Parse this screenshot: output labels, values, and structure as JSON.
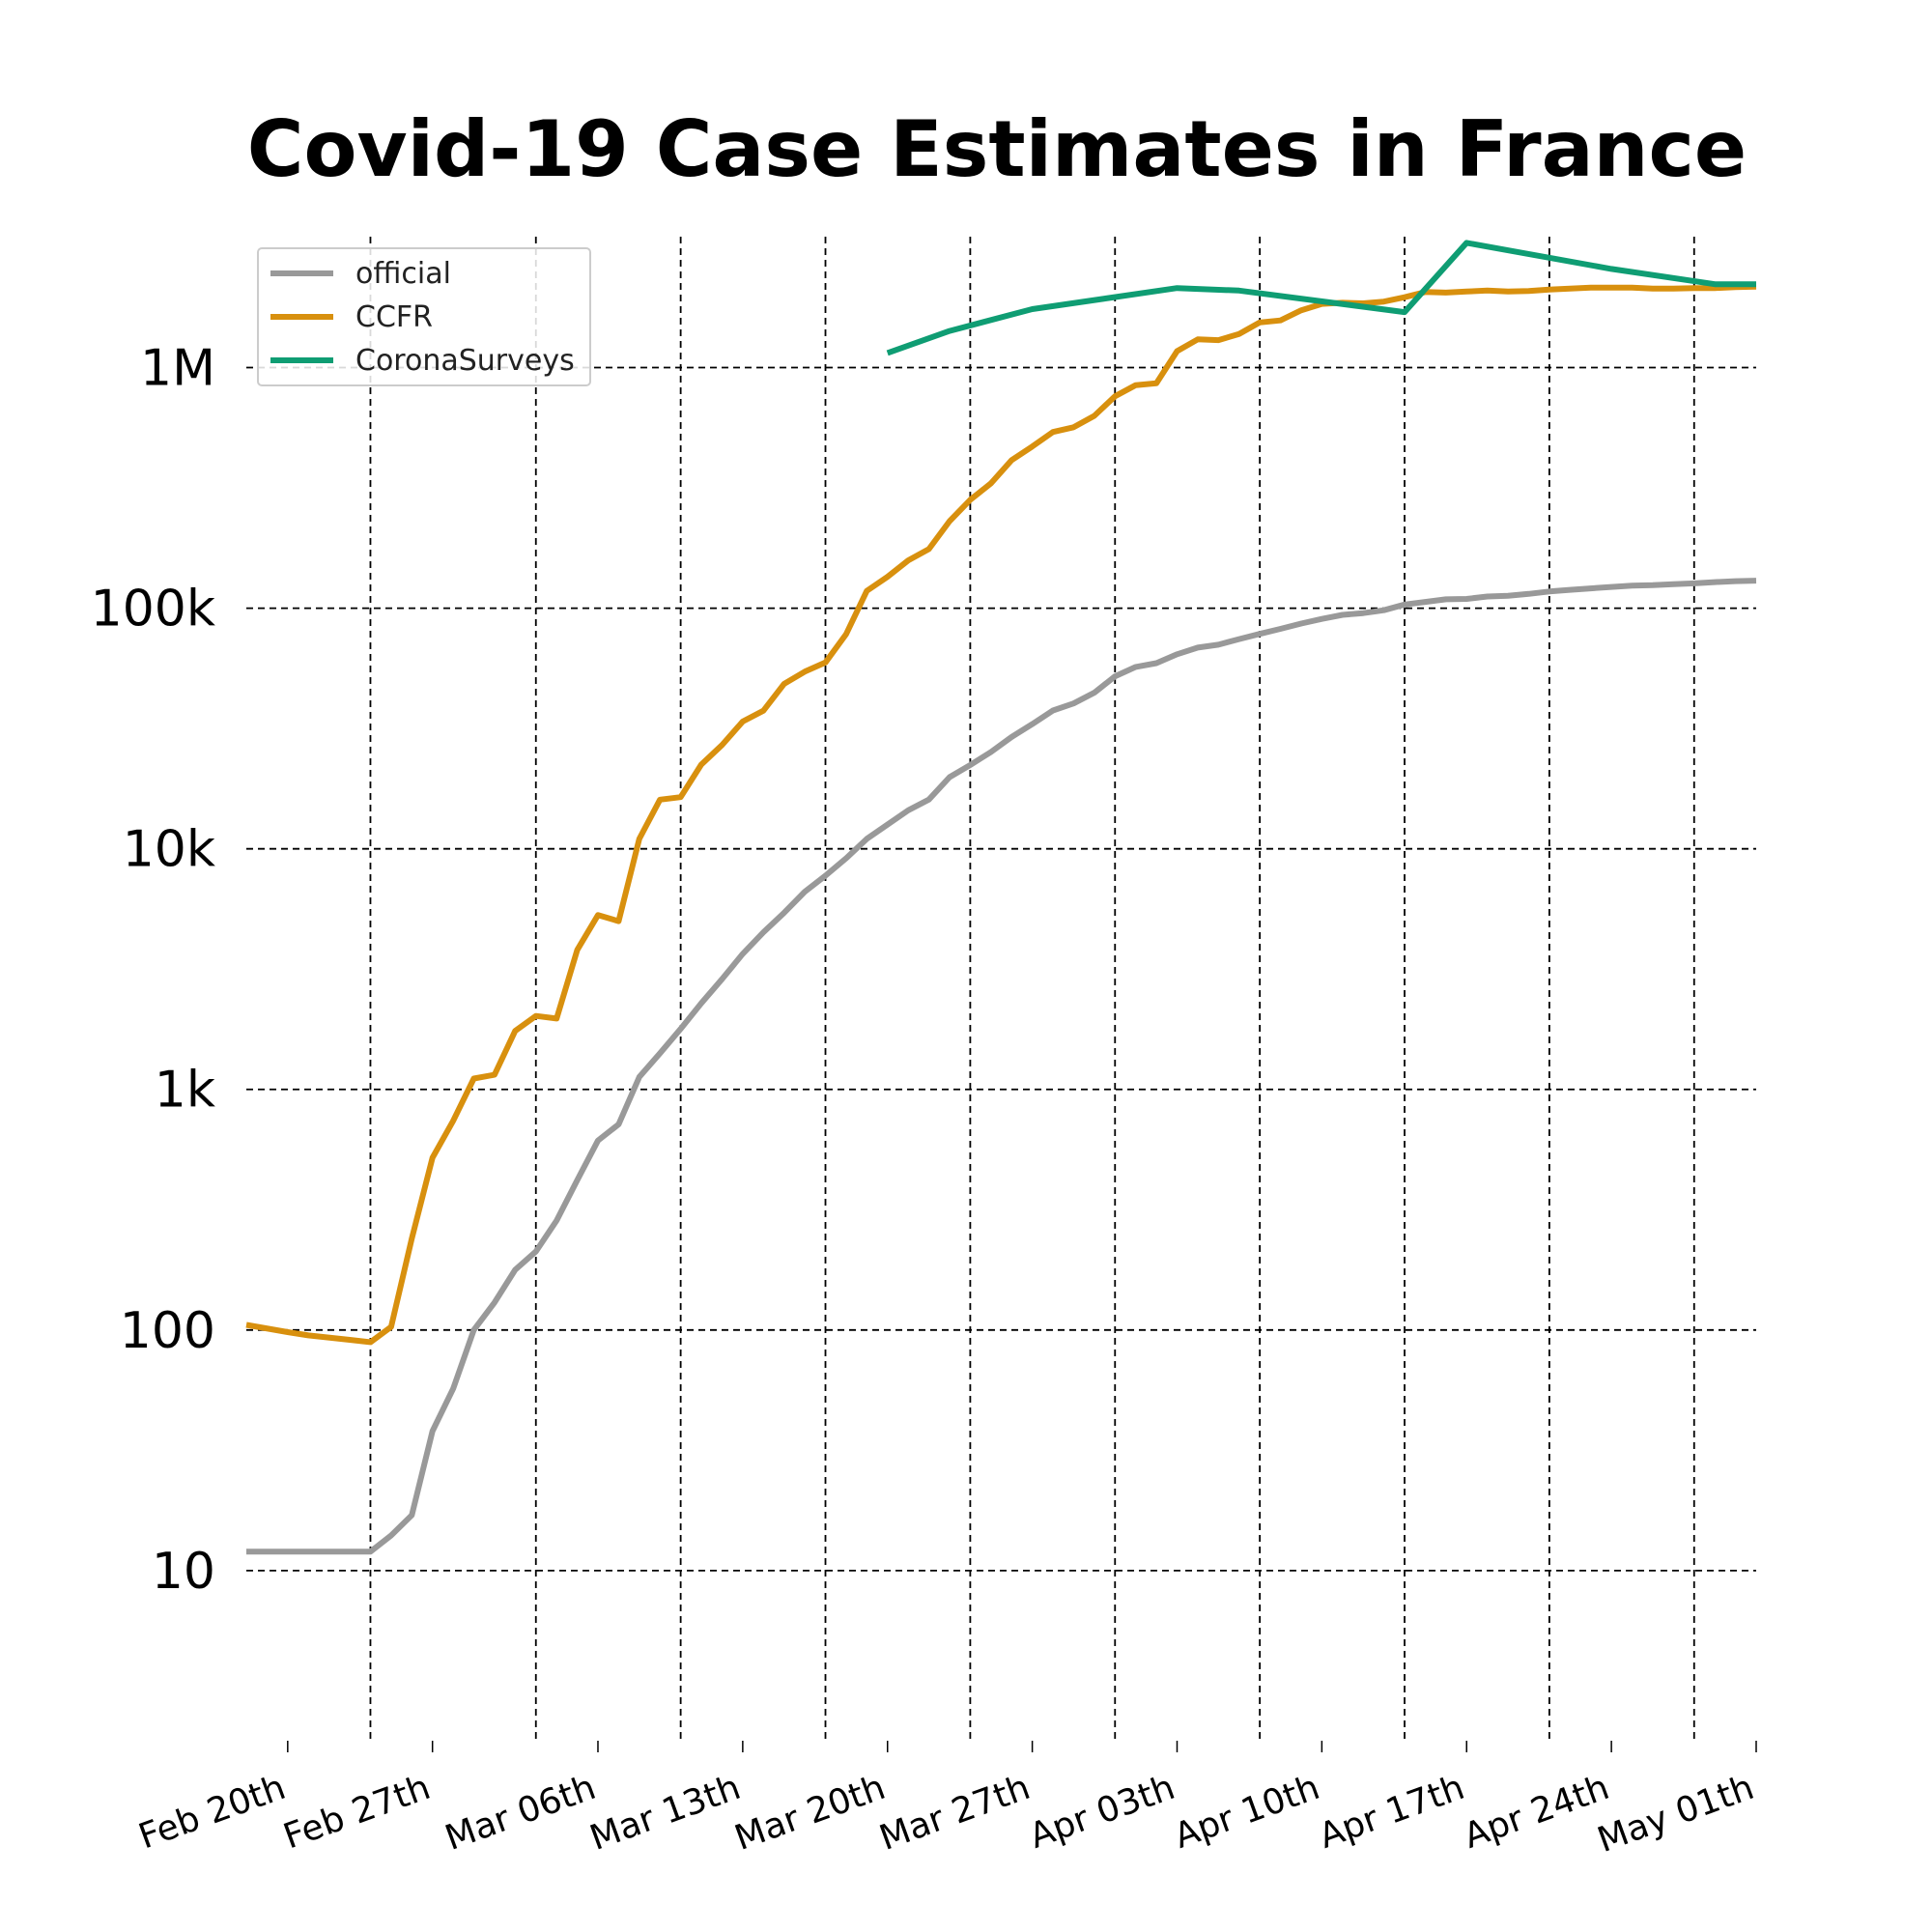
{
  "chart_data": {
    "type": "line",
    "title": "Covid-19 Case Estimates in France",
    "xlabel": "",
    "ylabel": "",
    "y_scale": "log",
    "ylim": [
      2,
      3500000
    ],
    "xlim": [
      "2020-02-18",
      "2020-05-01"
    ],
    "grid": true,
    "legend_position": "top-left",
    "y_ticks": [
      {
        "value": 10,
        "label": "10"
      },
      {
        "value": 100,
        "label": "100"
      },
      {
        "value": 1000,
        "label": "1k"
      },
      {
        "value": 10000,
        "label": "10k"
      },
      {
        "value": 100000,
        "label": "100k"
      },
      {
        "value": 1000000,
        "label": "1M"
      }
    ],
    "x_ticks": [
      {
        "date": "2020-02-20",
        "label": "Feb 20th"
      },
      {
        "date": "2020-02-27",
        "label": "Feb 27th"
      },
      {
        "date": "2020-03-06",
        "label": "Mar 06th"
      },
      {
        "date": "2020-03-13",
        "label": "Mar 13th"
      },
      {
        "date": "2020-03-20",
        "label": "Mar 20th"
      },
      {
        "date": "2020-03-27",
        "label": "Mar 27th"
      },
      {
        "date": "2020-04-03",
        "label": "Apr 03th"
      },
      {
        "date": "2020-04-10",
        "label": "Apr 10th"
      },
      {
        "date": "2020-04-17",
        "label": "Apr 17th"
      },
      {
        "date": "2020-04-24",
        "label": "Apr 24th"
      },
      {
        "date": "2020-05-01",
        "label": "May 01th"
      }
    ],
    "series": [
      {
        "name": "official",
        "color": "#999999",
        "points": [
          [
            "2020-02-18",
            12
          ],
          [
            "2020-02-19",
            12
          ],
          [
            "2020-02-20",
            12
          ],
          [
            "2020-02-21",
            12
          ],
          [
            "2020-02-22",
            12
          ],
          [
            "2020-02-23",
            12
          ],
          [
            "2020-02-24",
            12
          ],
          [
            "2020-02-25",
            14
          ],
          [
            "2020-02-26",
            17
          ],
          [
            "2020-02-27",
            38
          ],
          [
            "2020-02-28",
            57
          ],
          [
            "2020-02-29",
            100
          ],
          [
            "2020-03-01",
            130
          ],
          [
            "2020-03-02",
            178
          ],
          [
            "2020-03-03",
            212
          ],
          [
            "2020-03-04",
            285
          ],
          [
            "2020-03-05",
            420
          ],
          [
            "2020-03-06",
            613
          ],
          [
            "2020-03-07",
            716
          ],
          [
            "2020-03-08",
            1126
          ],
          [
            "2020-03-09",
            1412
          ],
          [
            "2020-03-10",
            1784
          ],
          [
            "2020-03-11",
            2281
          ],
          [
            "2020-03-12",
            2876
          ],
          [
            "2020-03-13",
            3661
          ],
          [
            "2020-03-14",
            4499
          ],
          [
            "2020-03-15",
            5423
          ],
          [
            "2020-03-16",
            6633
          ],
          [
            "2020-03-17",
            7730
          ],
          [
            "2020-03-18",
            9134
          ],
          [
            "2020-03-19",
            10995
          ],
          [
            "2020-03-20",
            12612
          ],
          [
            "2020-03-21",
            14459
          ],
          [
            "2020-03-22",
            16018
          ],
          [
            "2020-03-23",
            19856
          ],
          [
            "2020-03-24",
            22304
          ],
          [
            "2020-03-25",
            25233
          ],
          [
            "2020-03-26",
            29155
          ],
          [
            "2020-03-27",
            32964
          ],
          [
            "2020-03-28",
            37575
          ],
          [
            "2020-03-29",
            40174
          ],
          [
            "2020-03-30",
            44550
          ],
          [
            "2020-03-31",
            52128
          ],
          [
            "2020-04-01",
            56989
          ],
          [
            "2020-04-02",
            59105
          ],
          [
            "2020-04-03",
            64338
          ],
          [
            "2020-04-04",
            68605
          ],
          [
            "2020-04-05",
            70478
          ],
          [
            "2020-04-06",
            74390
          ],
          [
            "2020-04-07",
            78167
          ],
          [
            "2020-04-08",
            82048
          ],
          [
            "2020-04-09",
            86334
          ],
          [
            "2020-04-10",
            90276
          ],
          [
            "2020-04-11",
            93790
          ],
          [
            "2020-04-12",
            95403
          ],
          [
            "2020-04-13",
            98076
          ],
          [
            "2020-04-14",
            103573
          ],
          [
            "2020-04-15",
            106206
          ],
          [
            "2020-04-16",
            108847
          ],
          [
            "2020-04-17",
            109252
          ],
          [
            "2020-04-18",
            111821
          ],
          [
            "2020-04-19",
            112606
          ],
          [
            "2020-04-20",
            114657
          ],
          [
            "2020-04-21",
            117324
          ],
          [
            "2020-04-22",
            119151
          ],
          [
            "2020-04-23",
            120804
          ],
          [
            "2020-04-24",
            122577
          ],
          [
            "2020-04-25",
            124114
          ],
          [
            "2020-04-26",
            124575
          ],
          [
            "2020-04-27",
            125770
          ],
          [
            "2020-04-28",
            126835
          ],
          [
            "2020-04-29",
            128339
          ],
          [
            "2020-04-30",
            129581
          ],
          [
            "2020-05-01",
            130185
          ]
        ]
      },
      {
        "name": "CCFR",
        "color": "#d8900e",
        "points": [
          [
            "2020-02-18",
            105
          ],
          [
            "2020-02-20",
            98
          ],
          [
            "2020-02-21",
            95
          ],
          [
            "2020-02-23",
            91
          ],
          [
            "2020-02-24",
            89
          ],
          [
            "2020-02-25",
            103
          ],
          [
            "2020-02-26",
            240
          ],
          [
            "2020-02-27",
            520
          ],
          [
            "2020-02-28",
            740
          ],
          [
            "2020-02-29",
            1110
          ],
          [
            "2020-03-01",
            1150
          ],
          [
            "2020-03-02",
            1750
          ],
          [
            "2020-03-03",
            2020
          ],
          [
            "2020-03-04",
            1970
          ],
          [
            "2020-03-05",
            3800
          ],
          [
            "2020-03-06",
            5300
          ],
          [
            "2020-03-07",
            5000
          ],
          [
            "2020-03-08",
            11000
          ],
          [
            "2020-03-09",
            16000
          ],
          [
            "2020-03-10",
            16400
          ],
          [
            "2020-03-11",
            22400
          ],
          [
            "2020-03-12",
            27000
          ],
          [
            "2020-03-13",
            33800
          ],
          [
            "2020-03-14",
            37500
          ],
          [
            "2020-03-15",
            48500
          ],
          [
            "2020-03-16",
            54500
          ],
          [
            "2020-03-17",
            59500
          ],
          [
            "2020-03-18",
            78000
          ],
          [
            "2020-03-19",
            118000
          ],
          [
            "2020-03-20",
            135000
          ],
          [
            "2020-03-21",
            158000
          ],
          [
            "2020-03-22",
            176000
          ],
          [
            "2020-03-23",
            230000
          ],
          [
            "2020-03-24",
            282000
          ],
          [
            "2020-03-25",
            330000
          ],
          [
            "2020-03-26",
            412000
          ],
          [
            "2020-03-27",
            470000
          ],
          [
            "2020-03-28",
            540000
          ],
          [
            "2020-03-29",
            565000
          ],
          [
            "2020-03-30",
            630000
          ],
          [
            "2020-03-31",
            760000
          ],
          [
            "2020-04-01",
            845000
          ],
          [
            "2020-04-02",
            860000
          ],
          [
            "2020-04-03",
            1170000
          ],
          [
            "2020-04-04",
            1310000
          ],
          [
            "2020-04-05",
            1300000
          ],
          [
            "2020-04-06",
            1380000
          ],
          [
            "2020-04-07",
            1540000
          ],
          [
            "2020-04-08",
            1570000
          ],
          [
            "2020-04-09",
            1730000
          ],
          [
            "2020-04-10",
            1840000
          ],
          [
            "2020-04-11",
            1860000
          ],
          [
            "2020-04-12",
            1850000
          ],
          [
            "2020-04-13",
            1880000
          ],
          [
            "2020-04-14",
            1960000
          ],
          [
            "2020-04-15",
            2060000
          ],
          [
            "2020-04-16",
            2050000
          ],
          [
            "2020-04-17",
            2070000
          ],
          [
            "2020-04-18",
            2090000
          ],
          [
            "2020-04-19",
            2070000
          ],
          [
            "2020-04-20",
            2080000
          ],
          [
            "2020-04-21",
            2110000
          ],
          [
            "2020-04-22",
            2130000
          ],
          [
            "2020-04-23",
            2150000
          ],
          [
            "2020-04-24",
            2150000
          ],
          [
            "2020-04-25",
            2150000
          ],
          [
            "2020-04-26",
            2130000
          ],
          [
            "2020-04-27",
            2130000
          ],
          [
            "2020-04-28",
            2140000
          ],
          [
            "2020-04-29",
            2140000
          ],
          [
            "2020-04-30",
            2160000
          ],
          [
            "2020-05-01",
            2170000
          ]
        ]
      },
      {
        "name": "CoronaSurveys",
        "color": "#0f9d73",
        "points": [
          [
            "2020-03-20",
            1150000
          ],
          [
            "2020-03-23",
            1420000
          ],
          [
            "2020-03-27",
            1750000
          ],
          [
            "2020-04-03",
            2140000
          ],
          [
            "2020-04-06",
            2090000
          ],
          [
            "2020-04-14",
            1700000
          ],
          [
            "2020-04-17",
            3300000
          ],
          [
            "2020-04-24",
            2570000
          ],
          [
            "2020-04-29",
            2220000
          ],
          [
            "2020-05-01",
            2220000
          ]
        ]
      }
    ]
  }
}
